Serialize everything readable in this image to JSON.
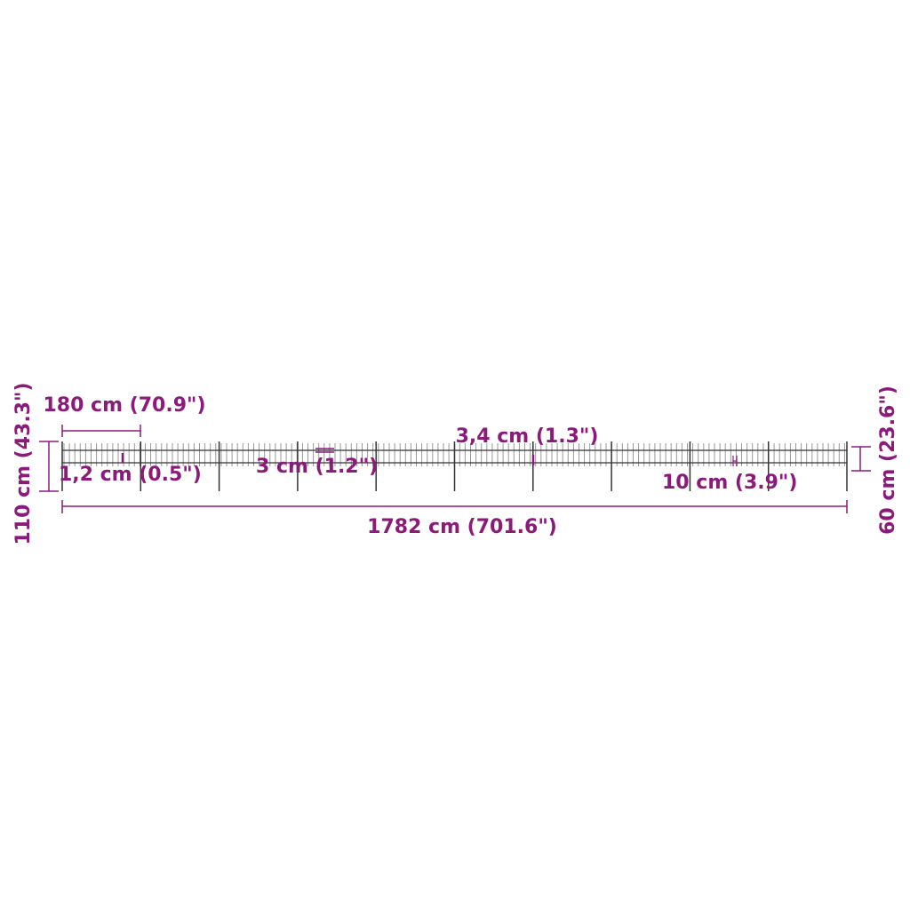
{
  "accent_color": "#8b1a7a",
  "fence_color": "#333333",
  "labels": {
    "section_width": "180 cm (70.9\")",
    "total_height": "110 cm (43.3\")",
    "picket_width": "1,2 cm (0.5\")",
    "rail_gap": "3 cm (1.2\")",
    "picket_spacing": "3,4 cm (1.3\")",
    "spike_length": "10 cm (3.9\")",
    "fence_height": "60 cm (23.6\")",
    "total_length": "1782 cm (701.6\")"
  }
}
